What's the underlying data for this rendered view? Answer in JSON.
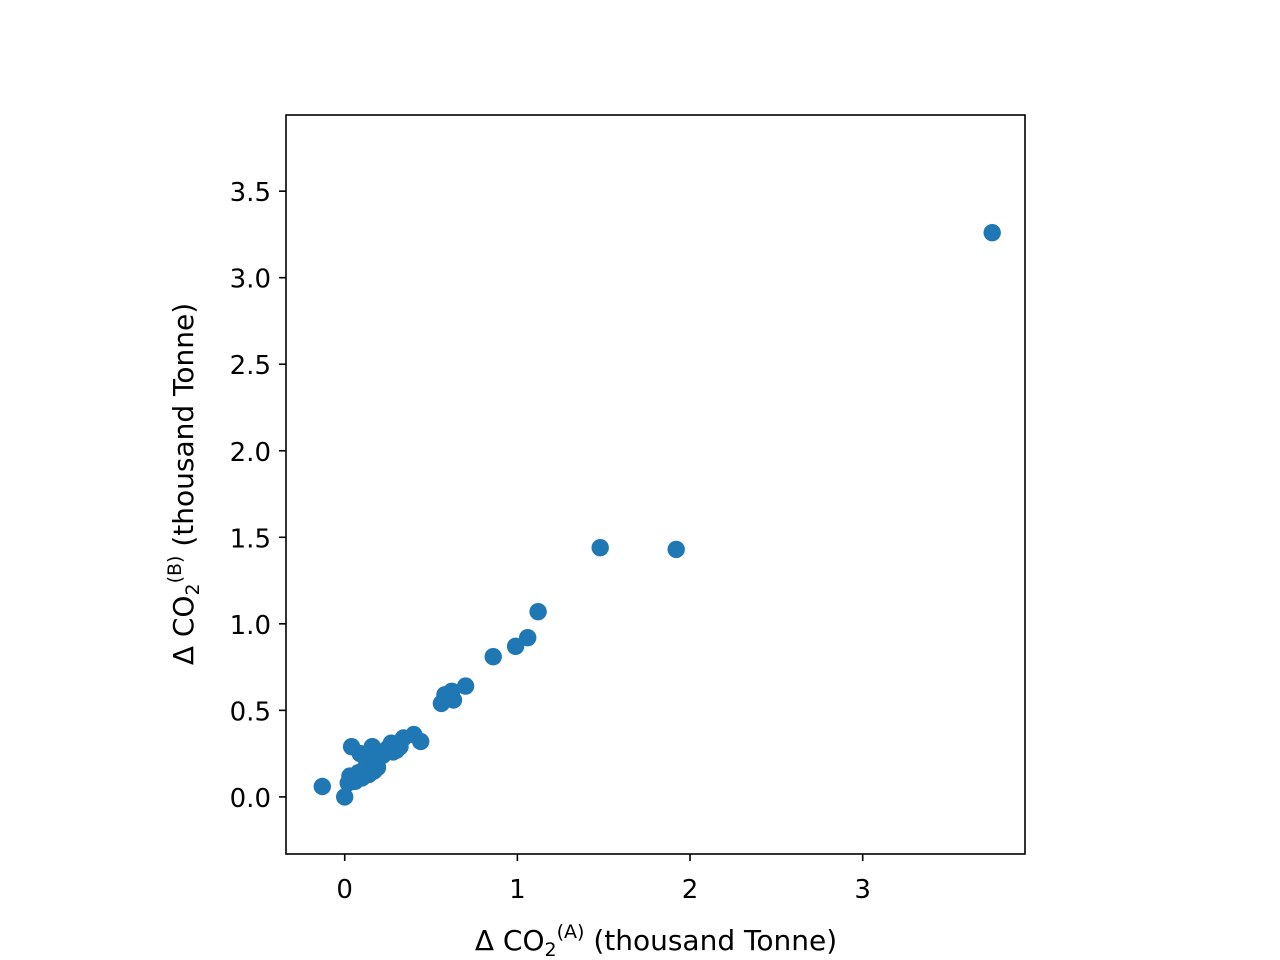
{
  "chart_data": {
    "type": "scatter",
    "title": "",
    "xlabel": {
      "prefix": "Δ CO",
      "subscript": "2",
      "superscript": "(A)",
      "suffix": " (thousand Tonne)"
    },
    "ylabel": {
      "prefix": "Δ CO",
      "subscript": "2",
      "superscript": "(B)",
      "suffix": " (thousand Tonne)"
    },
    "xlim": [
      -0.34,
      3.94
    ],
    "ylim": [
      -0.33,
      3.94
    ],
    "xticks": [
      {
        "value": 0,
        "label": "0"
      },
      {
        "value": 1,
        "label": "1"
      },
      {
        "value": 2,
        "label": "2"
      },
      {
        "value": 3,
        "label": "3"
      }
    ],
    "yticks": [
      {
        "value": 0.0,
        "label": "0.0"
      },
      {
        "value": 0.5,
        "label": "0.5"
      },
      {
        "value": 1.0,
        "label": "1.0"
      },
      {
        "value": 1.5,
        "label": "1.5"
      },
      {
        "value": 2.0,
        "label": "2.0"
      },
      {
        "value": 2.5,
        "label": "2.5"
      },
      {
        "value": 3.0,
        "label": "3.0"
      },
      {
        "value": 3.5,
        "label": "3.5"
      }
    ],
    "grid": false,
    "color": "#1f77b4",
    "points": [
      {
        "x": -0.13,
        "y": 0.06
      },
      {
        "x": 0.0,
        "y": 0.0
      },
      {
        "x": 0.02,
        "y": 0.08
      },
      {
        "x": 0.03,
        "y": 0.12
      },
      {
        "x": 0.04,
        "y": 0.29
      },
      {
        "x": 0.06,
        "y": 0.09
      },
      {
        "x": 0.08,
        "y": 0.14
      },
      {
        "x": 0.09,
        "y": 0.25
      },
      {
        "x": 0.1,
        "y": 0.11
      },
      {
        "x": 0.12,
        "y": 0.17
      },
      {
        "x": 0.13,
        "y": 0.22
      },
      {
        "x": 0.14,
        "y": 0.13
      },
      {
        "x": 0.16,
        "y": 0.29
      },
      {
        "x": 0.17,
        "y": 0.15
      },
      {
        "x": 0.18,
        "y": 0.2
      },
      {
        "x": 0.19,
        "y": 0.17
      },
      {
        "x": 0.2,
        "y": 0.26
      },
      {
        "x": 0.22,
        "y": 0.24
      },
      {
        "x": 0.25,
        "y": 0.28
      },
      {
        "x": 0.27,
        "y": 0.31
      },
      {
        "x": 0.28,
        "y": 0.26
      },
      {
        "x": 0.3,
        "y": 0.27
      },
      {
        "x": 0.32,
        "y": 0.29
      },
      {
        "x": 0.34,
        "y": 0.34
      },
      {
        "x": 0.4,
        "y": 0.36
      },
      {
        "x": 0.44,
        "y": 0.32
      },
      {
        "x": 0.56,
        "y": 0.54
      },
      {
        "x": 0.58,
        "y": 0.59
      },
      {
        "x": 0.62,
        "y": 0.61
      },
      {
        "x": 0.63,
        "y": 0.56
      },
      {
        "x": 0.7,
        "y": 0.64
      },
      {
        "x": 0.86,
        "y": 0.81
      },
      {
        "x": 0.99,
        "y": 0.87
      },
      {
        "x": 1.06,
        "y": 0.92
      },
      {
        "x": 1.12,
        "y": 1.07
      },
      {
        "x": 1.48,
        "y": 1.44
      },
      {
        "x": 1.92,
        "y": 1.43
      },
      {
        "x": 3.75,
        "y": 3.26
      }
    ]
  }
}
